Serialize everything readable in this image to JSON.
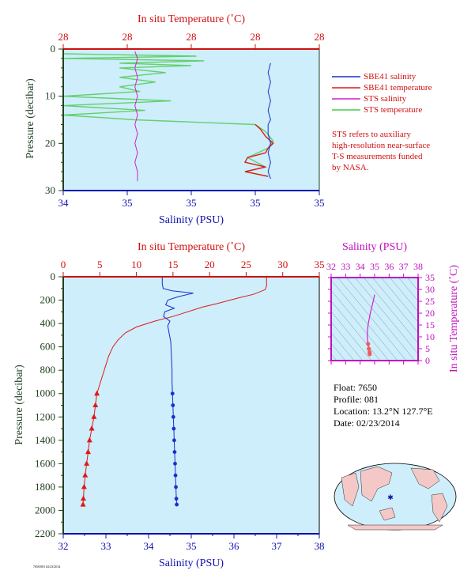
{
  "colors": {
    "plot_bg": "#cdeefa",
    "salinity": "#1a2ecc",
    "temperature": "#e01818",
    "sts_salinity": "#d020d0",
    "sts_temperature": "#48c848",
    "axis_red": "#d01010",
    "axis_blue": "#1010b0",
    "axis_green": "#204020",
    "axis_magenta": "#c010c0"
  },
  "legend": {
    "items": [
      "SBE41 salinity",
      "SBE41 temperature",
      "STS salinity",
      "STS temperature"
    ],
    "note_lines": [
      "STS refers to auxiliary",
      "high-resolution near-surface",
      "T-S measurements funded",
      "by NASA."
    ]
  },
  "info": {
    "float": "Float:  7650",
    "profile": "Profile:  081",
    "location": "Location:  13.2°N  127.7°E",
    "date": "Date:  02/23/2014"
  },
  "footer_code": "7650/081 02/23/2014",
  "chart_data": [
    {
      "id": "near-surface",
      "type": "line",
      "top_axis_label": "In situ Temperature (˚C)",
      "top_ticks": [
        "28",
        "28",
        "28",
        "28",
        "28"
      ],
      "xlabel": "Salinity (PSU)",
      "x_ticks": [
        "34",
        "35",
        "35",
        "35",
        "35"
      ],
      "ylabel": "Pressure (decibar)",
      "y_ticks": [
        0,
        10,
        20,
        30
      ],
      "ylim": [
        0,
        30
      ],
      "series": [
        {
          "name": "SBE41 salinity",
          "points": [
            [
              0.81,
              3
            ],
            [
              0.8,
              5
            ],
            [
              0.81,
              7
            ],
            [
              0.8,
              9
            ],
            [
              0.81,
              11
            ],
            [
              0.8,
              13
            ],
            [
              0.81,
              15
            ],
            [
              0.8,
              16
            ],
            [
              0.8,
              18
            ],
            [
              0.81,
              20
            ],
            [
              0.8,
              22
            ],
            [
              0.81,
              24
            ],
            [
              0.8,
              26
            ],
            [
              0.81,
              27.5
            ]
          ]
        },
        {
          "name": "SBE41 temperature",
          "points": [
            [
              0.75,
              16
            ],
            [
              0.77,
              17
            ],
            [
              0.79,
              18.5
            ],
            [
              0.82,
              20
            ],
            [
              0.8,
              21
            ],
            [
              0.79,
              22
            ],
            [
              0.72,
              23
            ],
            [
              0.71,
              24
            ],
            [
              0.79,
              25
            ],
            [
              0.71,
              26
            ],
            [
              0.8,
              27
            ]
          ]
        },
        {
          "name": "STS salinity",
          "points": [
            [
              0.28,
              0.5
            ],
            [
              0.29,
              2
            ],
            [
              0.28,
              4
            ],
            [
              0.29,
              6
            ],
            [
              0.28,
              8
            ],
            [
              0.29,
              10
            ],
            [
              0.28,
              12
            ],
            [
              0.29,
              14
            ],
            [
              0.28,
              16
            ],
            [
              0.29,
              18
            ],
            [
              0.28,
              20
            ],
            [
              0.29,
              22
            ],
            [
              0.28,
              24
            ],
            [
              0.29,
              26
            ],
            [
              0.29,
              28
            ]
          ]
        },
        {
          "name": "STS temperature",
          "points": [
            [
              0.0,
              1
            ],
            [
              0.52,
              1.5
            ],
            [
              0.0,
              2
            ],
            [
              0.55,
              2.5
            ],
            [
              0.22,
              3
            ],
            [
              0.5,
              3.5
            ],
            [
              0.22,
              4
            ],
            [
              0.4,
              5
            ],
            [
              0.22,
              6
            ],
            [
              0.36,
              7
            ],
            [
              0.22,
              8
            ],
            [
              0.3,
              9
            ],
            [
              0.0,
              10
            ],
            [
              0.42,
              11
            ],
            [
              0.0,
              12
            ],
            [
              0.32,
              13
            ],
            [
              0.0,
              14
            ],
            [
              0.28,
              15
            ],
            [
              0.75,
              16
            ],
            [
              0.79,
              17.5
            ],
            [
              0.82,
              19.5
            ],
            [
              0.8,
              21
            ],
            [
              0.72,
              23
            ],
            [
              0.79,
              25
            ],
            [
              0.71,
              26
            ],
            [
              0.8,
              27
            ]
          ]
        }
      ]
    },
    {
      "id": "full-profile",
      "type": "line",
      "top_axis_label": "In situ Temperature (˚C)",
      "xlim_temperature": [
        0,
        35
      ],
      "top_ticks": [
        0,
        5,
        10,
        15,
        20,
        25,
        30,
        35
      ],
      "xlabel": "Salinity (PSU)",
      "xlim_salinity": [
        32,
        38
      ],
      "x_ticks": [
        32,
        33,
        34,
        35,
        36,
        37,
        38
      ],
      "ylabel": "Pressure (decibar)",
      "ylim": [
        0,
        2200
      ],
      "y_ticks": [
        0,
        200,
        400,
        600,
        800,
        1000,
        1200,
        1400,
        1600,
        1800,
        2000,
        2200
      ],
      "series": [
        {
          "name": "Temperature",
          "points": [
            [
              27.8,
              0
            ],
            [
              27.8,
              80
            ],
            [
              27.6,
              110
            ],
            [
              26.0,
              150
            ],
            [
              24.0,
              180
            ],
            [
              21.0,
              230
            ],
            [
              19.0,
              260
            ],
            [
              17.0,
              300
            ],
            [
              15.0,
              340
            ],
            [
              12.5,
              380
            ],
            [
              10.0,
              430
            ],
            [
              8.5,
              480
            ],
            [
              7.5,
              540
            ],
            [
              6.8,
              600
            ],
            [
              6.2,
              680
            ],
            [
              5.8,
              760
            ],
            [
              5.4,
              840
            ],
            [
              5.0,
              920
            ],
            [
              4.6,
              1000
            ],
            [
              4.4,
              1100
            ],
            [
              4.2,
              1200
            ],
            [
              3.9,
              1300
            ],
            [
              3.6,
              1400
            ],
            [
              3.4,
              1500
            ],
            [
              3.2,
              1600
            ],
            [
              3.0,
              1700
            ],
            [
              2.85,
              1800
            ],
            [
              2.75,
              1900
            ],
            [
              2.7,
              1950
            ]
          ],
          "markers_from_pressure": 1000
        },
        {
          "name": "Salinity",
          "points": [
            [
              34.32,
              0
            ],
            [
              34.32,
              60
            ],
            [
              34.34,
              100
            ],
            [
              34.55,
              120
            ],
            [
              35.05,
              140
            ],
            [
              34.7,
              170
            ],
            [
              34.45,
              200
            ],
            [
              34.4,
              240
            ],
            [
              34.6,
              270
            ],
            [
              34.38,
              300
            ],
            [
              34.35,
              340
            ],
            [
              34.5,
              380
            ],
            [
              34.45,
              420
            ],
            [
              34.48,
              480
            ],
            [
              34.52,
              560
            ],
            [
              34.53,
              640
            ],
            [
              34.54,
              720
            ],
            [
              34.55,
              800
            ],
            [
              34.55,
              900
            ],
            [
              34.56,
              1000
            ],
            [
              34.57,
              1100
            ],
            [
              34.58,
              1200
            ],
            [
              34.59,
              1300
            ],
            [
              34.6,
              1400
            ],
            [
              34.61,
              1500
            ],
            [
              34.62,
              1600
            ],
            [
              34.63,
              1700
            ],
            [
              34.64,
              1800
            ],
            [
              34.65,
              1900
            ],
            [
              34.66,
              1950
            ]
          ],
          "markers_from_pressure": 1000
        }
      ]
    },
    {
      "id": "ts-diagram",
      "type": "line",
      "top_axis_label": "Salinity (PSU)",
      "xlim": [
        32,
        38
      ],
      "x_ticks": [
        32,
        33,
        34,
        35,
        36,
        37,
        38
      ],
      "ylabel": "In situ Temperature (˚C)",
      "ylim": [
        0,
        35
      ],
      "y_ticks": [
        0,
        5,
        10,
        15,
        20,
        25,
        30,
        35
      ],
      "series": [
        {
          "name": "T-S",
          "points": [
            [
              35.0,
              27.8
            ],
            [
              34.9,
              25.0
            ],
            [
              34.7,
              20.0
            ],
            [
              34.55,
              15.0
            ],
            [
              34.5,
              12.0
            ],
            [
              34.5,
              9.0
            ],
            [
              34.55,
              7.0
            ],
            [
              34.6,
              5.0
            ],
            [
              34.65,
              3.5
            ],
            [
              34.66,
              2.7
            ]
          ]
        }
      ]
    }
  ]
}
